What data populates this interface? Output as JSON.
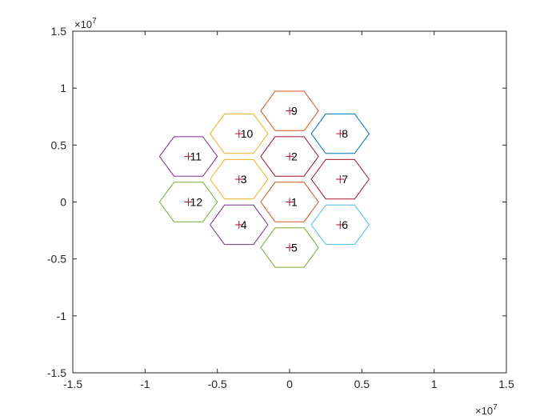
{
  "chart_data": {
    "type": "scatter",
    "title": "",
    "xlabel": "",
    "ylabel": "",
    "xlim": [
      -15000000,
      15000000
    ],
    "ylim": [
      -15000000,
      15000000
    ],
    "x_exponent_label": "×10",
    "x_exponent_power": "7",
    "y_exponent_label": "×10",
    "y_exponent_power": "7",
    "x_ticks": [
      {
        "value": -15000000,
        "label": "-1.5"
      },
      {
        "value": -10000000,
        "label": "-1"
      },
      {
        "value": -5000000,
        "label": "-0.5"
      },
      {
        "value": 0,
        "label": "0"
      },
      {
        "value": 5000000,
        "label": "0.5"
      },
      {
        "value": 10000000,
        "label": "1"
      },
      {
        "value": 15000000,
        "label": "1.5"
      }
    ],
    "y_ticks": [
      {
        "value": -15000000,
        "label": "-1.5"
      },
      {
        "value": -10000000,
        "label": "-1"
      },
      {
        "value": -5000000,
        "label": "-0.5"
      },
      {
        "value": 0,
        "label": "0"
      },
      {
        "value": 5000000,
        "label": "0.5"
      },
      {
        "value": 10000000,
        "label": "1"
      },
      {
        "value": 15000000,
        "label": "1.5"
      }
    ],
    "grid": false,
    "hex_radius": 2000000,
    "marker_color": "#A2142F",
    "cells": [
      {
        "label": "1",
        "x": 0,
        "y": 0,
        "color": "#D95319"
      },
      {
        "label": "2",
        "x": 0,
        "y": 4000000,
        "color": "#A2142F"
      },
      {
        "label": "3",
        "x": -3500000,
        "y": 2000000,
        "color": "#EDB120"
      },
      {
        "label": "4",
        "x": -3500000,
        "y": -2000000,
        "color": "#7E2F8E"
      },
      {
        "label": "5",
        "x": 0,
        "y": -4000000,
        "color": "#77AC30"
      },
      {
        "label": "6",
        "x": 3500000,
        "y": -2000000,
        "color": "#4DBEEE"
      },
      {
        "label": "7",
        "x": 3500000,
        "y": 2000000,
        "color": "#A2142F"
      },
      {
        "label": "8",
        "x": 3500000,
        "y": 6000000,
        "color": "#0072BD"
      },
      {
        "label": "9",
        "x": 0,
        "y": 8000000,
        "color": "#D95319"
      },
      {
        "label": "10",
        "x": -3500000,
        "y": 6000000,
        "color": "#EDB120"
      },
      {
        "label": "11",
        "x": -7000000,
        "y": 4000000,
        "color": "#7E2F8E"
      },
      {
        "label": "12",
        "x": -7000000,
        "y": 0,
        "color": "#77AC30"
      }
    ]
  }
}
